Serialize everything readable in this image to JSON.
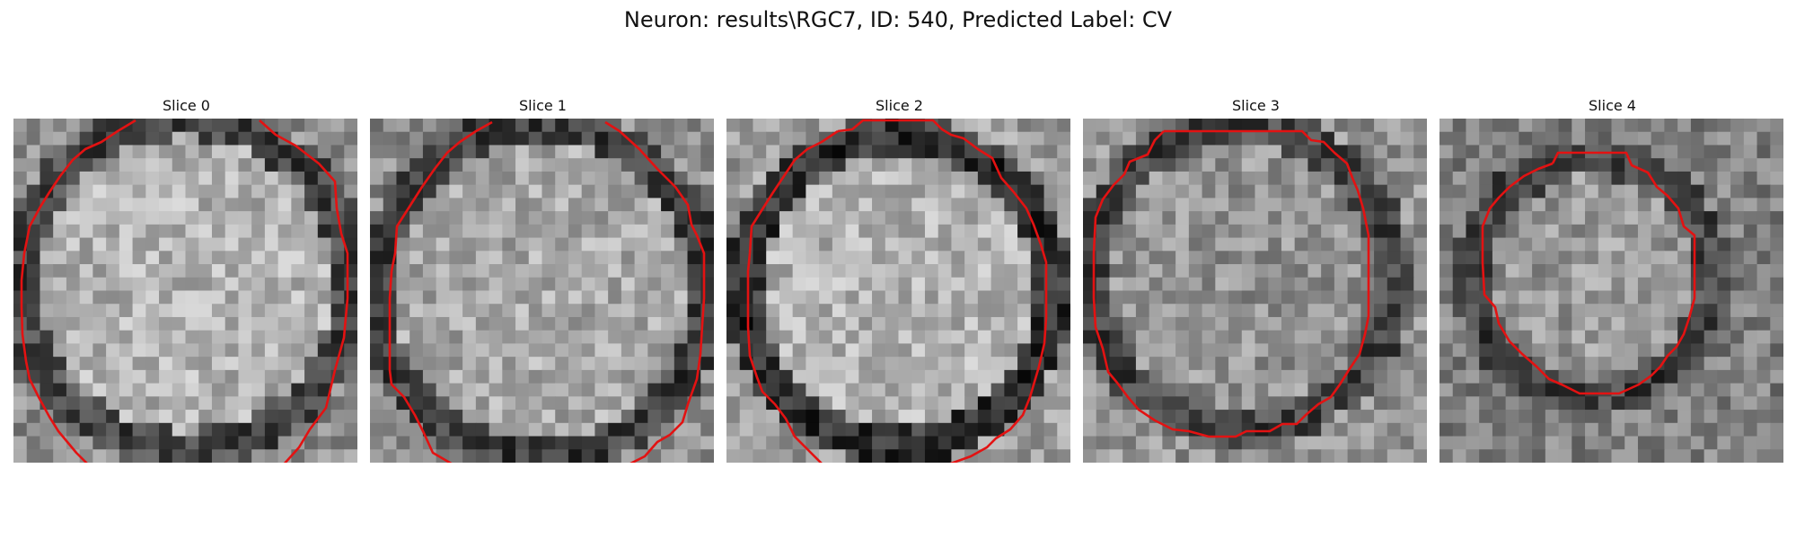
{
  "figure": {
    "title": "Neuron: results\\RGC7, ID: 540, Predicted Label: CV"
  },
  "contour_color": "#e31212",
  "panels": [
    {
      "title": "Slice 0"
    },
    {
      "title": "Slice 1"
    },
    {
      "title": "Slice 2"
    },
    {
      "title": "Slice 3"
    },
    {
      "title": "Slice 4"
    }
  ]
}
